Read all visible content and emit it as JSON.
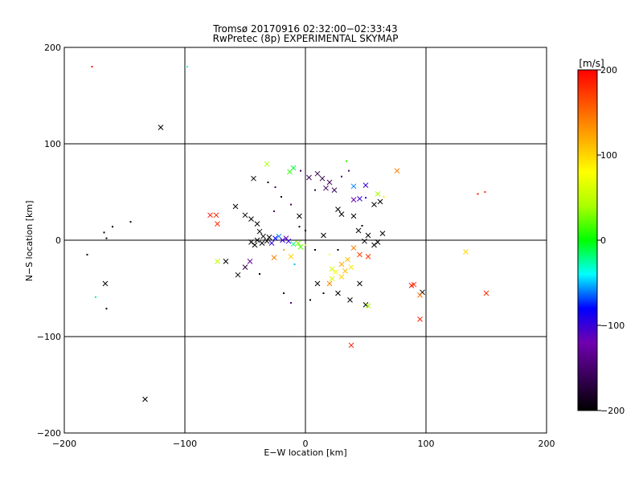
{
  "title": "Tromsø 20170916 02:32:00−02:33:43",
  "subtitle": "RwPretec (8p) EXPERIMENTAL SKYMAP",
  "colorbar": {
    "unit": "[m/s]",
    "ticks": [
      "200",
      "100",
      "0",
      "−100",
      "−200"
    ],
    "tick_values": [
      200,
      100,
      0,
      -100,
      -200
    ],
    "range": [
      -200,
      200
    ]
  },
  "chart_data": {
    "type": "scatter",
    "title": "Tromsø 20170916 02:32:00−02:33:43",
    "subtitle": "RwPretec (8p) EXPERIMENTAL SKYMAP",
    "xlabel": "E−W location [km]",
    "ylabel": "N−S location [km]",
    "xlim": [
      -200,
      200
    ],
    "ylim": [
      -200,
      200
    ],
    "xticks": [
      "−200",
      "−100",
      "0",
      "100",
      "200"
    ],
    "yticks": [
      "−200",
      "−100",
      "0",
      "100",
      "200"
    ],
    "grid": true,
    "color_scale": "rainbow",
    "color_range": [
      -200,
      200
    ],
    "points": [
      {
        "x": -177,
        "y": 180,
        "v": 190,
        "m": "."
      },
      {
        "x": -98,
        "y": 180,
        "v": -40,
        "m": "."
      },
      {
        "x": -120,
        "y": 117,
        "v": -200,
        "m": "x"
      },
      {
        "x": -181,
        "y": -15,
        "v": -200,
        "m": "."
      },
      {
        "x": -167,
        "y": 8,
        "v": -200,
        "m": "."
      },
      {
        "x": -160,
        "y": 14,
        "v": -200,
        "m": "."
      },
      {
        "x": -145,
        "y": 19,
        "v": -200,
        "m": "."
      },
      {
        "x": -165,
        "y": 2,
        "v": -200,
        "m": "."
      },
      {
        "x": -166,
        "y": -45,
        "v": -200,
        "m": "x"
      },
      {
        "x": -174,
        "y": -59,
        "v": -20,
        "m": "."
      },
      {
        "x": -165,
        "y": -71,
        "v": -200,
        "m": "."
      },
      {
        "x": -133,
        "y": -165,
        "v": -200,
        "m": "x"
      },
      {
        "x": -79,
        "y": 26,
        "v": 190,
        "m": "x"
      },
      {
        "x": -74,
        "y": 26,
        "v": 185,
        "m": "x"
      },
      {
        "x": -73,
        "y": 17,
        "v": 180,
        "m": "x"
      },
      {
        "x": -58,
        "y": 35,
        "v": -200,
        "m": "x"
      },
      {
        "x": -50,
        "y": 26,
        "v": -200,
        "m": "x"
      },
      {
        "x": -45,
        "y": 22,
        "v": -200,
        "m": "x"
      },
      {
        "x": -40,
        "y": 17,
        "v": -200,
        "m": "x"
      },
      {
        "x": -43,
        "y": 64,
        "v": -200,
        "m": "x"
      },
      {
        "x": -31,
        "y": 60,
        "v": -200,
        "m": "."
      },
      {
        "x": -25,
        "y": 55,
        "v": -150,
        "m": "."
      },
      {
        "x": -32,
        "y": 79,
        "v": 40,
        "m": "x"
      },
      {
        "x": -10,
        "y": 75,
        "v": -10,
        "m": "x"
      },
      {
        "x": -13,
        "y": 71,
        "v": 10,
        "m": "x"
      },
      {
        "x": -4,
        "y": 72,
        "v": -160,
        "m": "."
      },
      {
        "x": 3,
        "y": 65,
        "v": -160,
        "m": "x"
      },
      {
        "x": 10,
        "y": 69,
        "v": -165,
        "m": "x"
      },
      {
        "x": 14,
        "y": 64,
        "v": -170,
        "m": "x"
      },
      {
        "x": 20,
        "y": 60,
        "v": -155,
        "m": "x"
      },
      {
        "x": 17,
        "y": 54,
        "v": -160,
        "m": "x"
      },
      {
        "x": 8,
        "y": 52,
        "v": -170,
        "m": "."
      },
      {
        "x": 24,
        "y": 52,
        "v": -160,
        "m": "x"
      },
      {
        "x": 30,
        "y": 66,
        "v": -150,
        "m": "."
      },
      {
        "x": 36,
        "y": 72,
        "v": -150,
        "m": "."
      },
      {
        "x": 40,
        "y": 56,
        "v": -60,
        "m": "x"
      },
      {
        "x": 50,
        "y": 57,
        "v": -100,
        "m": "x"
      },
      {
        "x": 34,
        "y": 82,
        "v": 10,
        "m": "."
      },
      {
        "x": 40,
        "y": 42,
        "v": -120,
        "m": "x"
      },
      {
        "x": 45,
        "y": 43,
        "v": -100,
        "m": "x"
      },
      {
        "x": 50,
        "y": 44,
        "v": -90,
        "m": "."
      },
      {
        "x": 60,
        "y": 48,
        "v": 40,
        "m": "x"
      },
      {
        "x": 57,
        "y": 37,
        "v": -200,
        "m": "x"
      },
      {
        "x": 62,
        "y": 40,
        "v": -200,
        "m": "x"
      },
      {
        "x": 65,
        "y": 45,
        "v": 90,
        "m": "."
      },
      {
        "x": 76,
        "y": 72,
        "v": 140,
        "m": "x"
      },
      {
        "x": 27,
        "y": 32,
        "v": -200,
        "m": "x"
      },
      {
        "x": 30,
        "y": 27,
        "v": -200,
        "m": "x"
      },
      {
        "x": 40,
        "y": 25,
        "v": -200,
        "m": "x"
      },
      {
        "x": 47,
        "y": 15,
        "v": -200,
        "m": "."
      },
      {
        "x": 44,
        "y": 10,
        "v": -200,
        "m": "x"
      },
      {
        "x": 52,
        "y": 5,
        "v": -200,
        "m": "x"
      },
      {
        "x": 60,
        "y": -2,
        "v": -200,
        "m": "x"
      },
      {
        "x": 57,
        "y": -5,
        "v": -200,
        "m": "x"
      },
      {
        "x": 64,
        "y": 7,
        "v": -200,
        "m": "x"
      },
      {
        "x": 49,
        "y": -1,
        "v": -200,
        "m": "x"
      },
      {
        "x": 40,
        "y": -8,
        "v": 140,
        "m": "x"
      },
      {
        "x": 45,
        "y": -15,
        "v": 170,
        "m": "x"
      },
      {
        "x": 52,
        "y": -17,
        "v": 175,
        "m": "x"
      },
      {
        "x": 35,
        "y": -20,
        "v": 110,
        "m": "x"
      },
      {
        "x": 30,
        "y": -25,
        "v": 120,
        "m": "x"
      },
      {
        "x": 38,
        "y": -28,
        "v": 90,
        "m": "x"
      },
      {
        "x": 25,
        "y": -33,
        "v": 80,
        "m": "x"
      },
      {
        "x": 30,
        "y": -38,
        "v": 100,
        "m": "x"
      },
      {
        "x": 22,
        "y": -40,
        "v": 60,
        "m": "x"
      },
      {
        "x": 20,
        "y": -45,
        "v": 140,
        "m": "x"
      },
      {
        "x": 10,
        "y": -45,
        "v": -200,
        "m": "x"
      },
      {
        "x": 45,
        "y": -45,
        "v": -200,
        "m": "x"
      },
      {
        "x": 27,
        "y": -55,
        "v": -200,
        "m": "x"
      },
      {
        "x": 37,
        "y": -62,
        "v": -200,
        "m": "x"
      },
      {
        "x": 50,
        "y": -67,
        "v": -200,
        "m": "x"
      },
      {
        "x": 52,
        "y": -68,
        "v": 40,
        "m": "x"
      },
      {
        "x": 90,
        "y": -46,
        "v": 180,
        "m": "x"
      },
      {
        "x": 88,
        "y": -47,
        "v": 190,
        "m": "x"
      },
      {
        "x": 97,
        "y": -54,
        "v": -200,
        "m": "x"
      },
      {
        "x": 95,
        "y": -57,
        "v": 150,
        "m": "x"
      },
      {
        "x": 150,
        "y": -55,
        "v": 180,
        "m": "x"
      },
      {
        "x": 95,
        "y": -82,
        "v": 185,
        "m": "x"
      },
      {
        "x": 38,
        "y": -109,
        "v": 190,
        "m": "x"
      },
      {
        "x": 133,
        "y": -12,
        "v": 100,
        "m": "x"
      },
      {
        "x": 143,
        "y": 48,
        "v": 190,
        "m": "."
      },
      {
        "x": 149,
        "y": 50,
        "v": 180,
        "m": "."
      },
      {
        "x": -5,
        "y": 25,
        "v": -200,
        "m": "x"
      },
      {
        "x": -12,
        "y": 37,
        "v": -150,
        "m": "."
      },
      {
        "x": -20,
        "y": 45,
        "v": -200,
        "m": "."
      },
      {
        "x": -26,
        "y": 30,
        "v": -150,
        "m": "."
      },
      {
        "x": -5,
        "y": 14,
        "v": -200,
        "m": "."
      },
      {
        "x": 0,
        "y": 10,
        "v": -200,
        "m": "."
      },
      {
        "x": 15,
        "y": 5,
        "v": -200,
        "m": "x"
      },
      {
        "x": 8,
        "y": -10,
        "v": -200,
        "m": "."
      },
      {
        "x": -38,
        "y": 9,
        "v": -200,
        "m": "x"
      },
      {
        "x": -35,
        "y": 4,
        "v": -200,
        "m": "x"
      },
      {
        "x": -40,
        "y": 0,
        "v": -200,
        "m": "x"
      },
      {
        "x": -45,
        "y": -2,
        "v": -200,
        "m": "x"
      },
      {
        "x": -42,
        "y": -5,
        "v": -200,
        "m": "x"
      },
      {
        "x": -36,
        "y": -3,
        "v": -200,
        "m": "x"
      },
      {
        "x": -32,
        "y": -1,
        "v": -200,
        "m": "x"
      },
      {
        "x": -30,
        "y": 3,
        "v": -200,
        "m": "x"
      },
      {
        "x": -28,
        "y": -3,
        "v": -100,
        "m": "x"
      },
      {
        "x": -25,
        "y": 2,
        "v": -80,
        "m": "x"
      },
      {
        "x": -22,
        "y": 4,
        "v": -60,
        "m": "x"
      },
      {
        "x": -19,
        "y": 0,
        "v": -100,
        "m": "x"
      },
      {
        "x": -16,
        "y": 2,
        "v": -120,
        "m": "x"
      },
      {
        "x": -14,
        "y": -1,
        "v": -90,
        "m": "x"
      },
      {
        "x": -10,
        "y": -4,
        "v": -20,
        "m": "x"
      },
      {
        "x": -6,
        "y": -3,
        "v": 30,
        "m": "x"
      },
      {
        "x": -4,
        "y": -7,
        "v": 20,
        "m": "x"
      },
      {
        "x": 0,
        "y": -5,
        "v": 50,
        "m": "."
      },
      {
        "x": -26,
        "y": -18,
        "v": 140,
        "m": "x"
      },
      {
        "x": -12,
        "y": -17,
        "v": 100,
        "m": "x"
      },
      {
        "x": -18,
        "y": -10,
        "v": 120,
        "m": "."
      },
      {
        "x": -9,
        "y": -25,
        "v": -50,
        "m": "."
      },
      {
        "x": -46,
        "y": -22,
        "v": -130,
        "m": "x"
      },
      {
        "x": -50,
        "y": -28,
        "v": -170,
        "m": "x"
      },
      {
        "x": -56,
        "y": -36,
        "v": -200,
        "m": "x"
      },
      {
        "x": -66,
        "y": -22,
        "v": -200,
        "m": "x"
      },
      {
        "x": -73,
        "y": -22,
        "v": 50,
        "m": "x"
      },
      {
        "x": -38,
        "y": -35,
        "v": -200,
        "m": "."
      },
      {
        "x": -18,
        "y": -55,
        "v": -200,
        "m": "."
      },
      {
        "x": -12,
        "y": -65,
        "v": -140,
        "m": "."
      },
      {
        "x": 15,
        "y": -55,
        "v": -200,
        "m": "."
      },
      {
        "x": 4,
        "y": -62,
        "v": -200,
        "m": "."
      },
      {
        "x": 22,
        "y": -30,
        "v": 60,
        "m": "x"
      },
      {
        "x": 33,
        "y": -32,
        "v": 110,
        "m": "x"
      },
      {
        "x": 20,
        "y": -15,
        "v": 80,
        "m": "."
      },
      {
        "x": 27,
        "y": -10,
        "v": -200,
        "m": "."
      }
    ]
  }
}
